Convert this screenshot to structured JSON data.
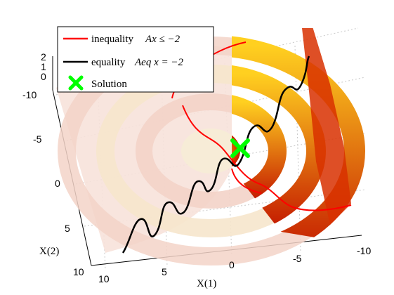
{
  "chart_data": {
    "type": "surface3d",
    "xlabel": "X(1)",
    "ylabel": "X(2)",
    "x_ticks": [
      "10",
      "5",
      "0",
      "-5",
      "-10"
    ],
    "y_ticks": [
      "-10",
      "-5",
      "0",
      "5",
      "10"
    ],
    "z_ticks": [
      "2",
      "1",
      "0"
    ],
    "xlim": [
      -10,
      10
    ],
    "ylim": [
      -10,
      10
    ],
    "zlim": [
      0,
      2
    ],
    "grid": true,
    "legend_position": "top-left",
    "legend": [
      {
        "text": "inequality",
        "math": "Ax ≤ −2",
        "color": "#ff0000",
        "marker": "line"
      },
      {
        "text": "equality",
        "math": "Aeq x = −2",
        "color": "#000000",
        "marker": "line"
      },
      {
        "text": "Solution",
        "math": "",
        "color": "#00ff00",
        "marker": "x"
      }
    ],
    "colors": {
      "surface_dark": "#cc2200",
      "surface_mid": "#e07000",
      "surface_light": "#ffe040",
      "infeasible_tint": "#f6d8d0",
      "inequality_line": "#ff0000",
      "equality_line": "#000000",
      "solution_marker": "#00ff00"
    },
    "solution": {
      "x1": -1,
      "x2": -4
    }
  }
}
